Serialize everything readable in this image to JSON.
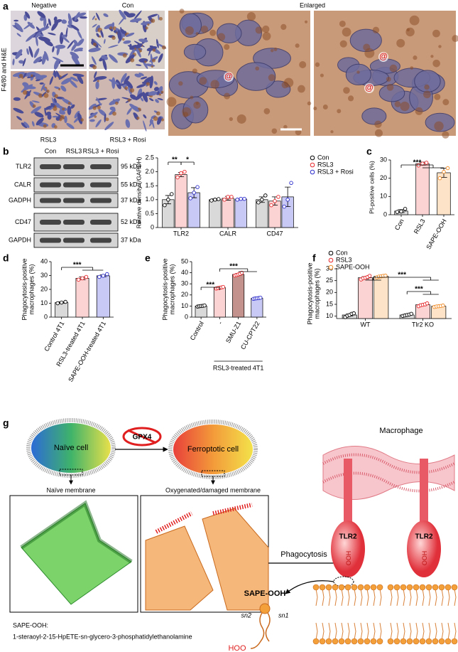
{
  "panel_labels": [
    "a",
    "b",
    "c",
    "d",
    "e",
    "f",
    "g"
  ],
  "panel_a": {
    "ylabel": "F4/80 and H&E",
    "headers": [
      "Negative",
      "Con",
      "Enlarged"
    ],
    "footers": [
      "RSL3",
      "RSL3 + Rosi"
    ],
    "markers": [
      "@",
      "@",
      "@"
    ]
  },
  "blot": {
    "lanes": [
      "Con",
      "RSL3",
      "RSL3 + Rosi"
    ],
    "rows": [
      {
        "name": "TLR2",
        "size": "95 kDa"
      },
      {
        "name": "CALR",
        "size": "55 kDa"
      },
      {
        "name": "GADPH",
        "size": "37 kDa"
      },
      {
        "name": "CD47",
        "size": "52 kDa"
      },
      {
        "name": "GAPDH",
        "size": "37 kDa"
      }
    ]
  },
  "chart_data": [
    {
      "type": "bar",
      "ylabel": "Relative density (/GAPDH)",
      "categories": [
        "TLR2",
        "CALR",
        "CD47"
      ],
      "series": [
        {
          "name": "Con",
          "color": "#d9d9d9",
          "edge_color": "#000000",
          "values": [
            1,
            1,
            1
          ],
          "errors": [
            0.15,
            0.03,
            0.1
          ],
          "points": [
            [
              0.8,
              1.0,
              1.2
            ],
            [
              0.97,
              1.0,
              1.02
            ],
            [
              0.9,
              1.0,
              1.15
            ]
          ]
        },
        {
          "name": "RSL3",
          "color": "#fbd3d3",
          "edge_color": "#e8262a",
          "values": [
            1.9,
            1.05,
            0.95
          ],
          "errors": [
            0.08,
            0.07,
            0.15
          ],
          "points": [
            [
              1.8,
              1.95,
              2.0
            ],
            [
              1.0,
              1.1,
              1.1
            ],
            [
              0.8,
              0.95,
              1.1
            ]
          ]
        },
        {
          "name": "RSL3 + Rosi",
          "color": "#c9c9f5",
          "edge_color": "#2b2bcc",
          "values": [
            1.25,
            1.02,
            1.1
          ],
          "errors": [
            0.18,
            0.02,
            0.35
          ],
          "points": [
            [
              1.05,
              1.25,
              1.45
            ],
            [
              1.0,
              1.03,
              1.03
            ],
            [
              0.75,
              1.0,
              1.6
            ]
          ]
        }
      ],
      "ylim": [
        0,
        2.5
      ],
      "yticks": [
        0,
        0.5,
        {
          "value": 1,
          "label": "1.0"
        },
        1.5,
        {
          "value": 2,
          "label": "2.0"
        },
        2.5
      ],
      "annotations": [
        "**",
        "*"
      ]
    },
    {
      "type": "bar",
      "ylabel": "PI-positive cells (%)",
      "categories": [
        "Con",
        "RSL3",
        "SAPE-OOH"
      ],
      "values": [
        2,
        28,
        23
      ],
      "errors": [
        0.8,
        0.8,
        2.5
      ],
      "points": [
        [
          1.5,
          1.8,
          3.2
        ],
        [
          27,
          28,
          28.5
        ],
        [
          20,
          23.5,
          25.5
        ]
      ],
      "colors": [
        "#d9d9d9",
        "#fbd3d3",
        "#fde3c7"
      ],
      "edge_colors": [
        "#000000",
        "#e8262a",
        "#f08a24"
      ],
      "ylim": [
        0,
        30
      ],
      "yticks": [
        0,
        10,
        20,
        30
      ],
      "annotations": [
        "***"
      ]
    },
    {
      "type": "bar",
      "ylabel": [
        "Phagocytosis-positive",
        "macrophages (%)"
      ],
      "categories": [
        "Control 4T1",
        "RSL3-treated 4T1",
        "SAPE-OOH-treated 4T1"
      ],
      "values": [
        10.5,
        28,
        29.8
      ],
      "errors": [
        0.5,
        1,
        0.7
      ],
      "points": [
        [
          10,
          10.5,
          11
        ],
        [
          27,
          28,
          29
        ],
        [
          29,
          29.8,
          31
        ]
      ],
      "colors": [
        "#d9d9d9",
        "#fbd3d3",
        "#c9c9f5"
      ],
      "edge_colors": [
        "#000000",
        "#e8262a",
        "#2b2bcc"
      ],
      "ylim": [
        0,
        40
      ],
      "yticks": [
        0,
        10,
        20,
        30,
        40
      ],
      "annotations": [
        "***"
      ]
    },
    {
      "type": "bar",
      "ylabel": [
        "Phagocytosis-positive",
        "macrophages (%)"
      ],
      "categories": [
        "Control",
        "-",
        "SMU-Z1",
        "CU-CPT22"
      ],
      "values": [
        10,
        26.5,
        38.5,
        17
      ],
      "errors": [
        0.6,
        0.8,
        1,
        0.5
      ],
      "points": [
        [
          9.5,
          9.8,
          10,
          10.2,
          10.5
        ],
        [
          25.8,
          26.2,
          26.5,
          26.8,
          27.2
        ],
        [
          37.5,
          38,
          38.5,
          39,
          40
        ],
        [
          16.5,
          16.8,
          17,
          17.2,
          17.5
        ]
      ],
      "colors": [
        "#d9d9d9",
        "#fbd3d3",
        "#c4928c",
        "#c9c9f5"
      ],
      "edge_colors": [
        "#000000",
        "#e8262a",
        "#e8262a",
        "#2b2bcc"
      ],
      "group_label": "RSL3-treated 4T1",
      "ylim": [
        0,
        50
      ],
      "yticks": [
        0,
        10,
        20,
        30,
        40,
        50
      ],
      "annotations": [
        "***",
        "***"
      ]
    },
    {
      "type": "bar",
      "ylabel": [
        "Phagocytosis-positive",
        "macrophages (%)"
      ],
      "categories": [
        "WT",
        "Tlr2 KO"
      ],
      "series": [
        {
          "name": "Con",
          "color": "#d9d9d9",
          "edge_color": "#000000",
          "values": [
            10.5,
            10.5
          ],
          "errors": [
            0.4,
            0.3
          ],
          "points": [
            [
              9.6,
              10.2,
              10.5,
              11,
              11.2
            ],
            [
              10.1,
              10.3,
              10.5,
              10.7,
              11
            ]
          ]
        },
        {
          "name": "RSL3",
          "color": "#fbd3d3",
          "edge_color": "#e8262a",
          "values": [
            26.2,
            14.8
          ],
          "errors": [
            0.5,
            0.4
          ],
          "points": [
            [
              25.5,
              26,
              26.2,
              26.5,
              27
            ],
            [
              14.2,
              14.6,
              14.8,
              15,
              15.4
            ]
          ]
        },
        {
          "name": "SAPE-OOH",
          "color": "#fde3c7",
          "edge_color": "#f08a24",
          "values": [
            26.8,
            14.2
          ],
          "errors": [
            0.3,
            0.3
          ],
          "points": [
            [
              26.4,
              26.7,
              26.8,
              27,
              27.1
            ],
            [
              13.9,
              14.1,
              14.2,
              14.3,
              14.5
            ]
          ]
        }
      ],
      "ylim": [
        9,
        30
      ],
      "yticks": [
        10,
        15,
        20,
        25,
        30
      ],
      "annotations": [
        "***",
        "***"
      ]
    }
  ],
  "diagram": {
    "naive_cell": "Naïve cell",
    "enzyme": "GPX4",
    "ferroptotic_cell": "Ferroptotic cell",
    "naive_membrane": "Naïve membrane",
    "damaged_membrane": "Oxygenated/damaged membrane",
    "process": "Phagocytosis",
    "macrophage": "Macrophage",
    "receptors": [
      "TLR2",
      "TLR2"
    ],
    "receptor_groups": [
      "HOO",
      "HOO"
    ],
    "lipid": "SAPE-OOH",
    "chains": [
      "sn2",
      "sn1"
    ],
    "lipid_group": "HOO",
    "legend_term": "SAPE-OOH:",
    "legend_definition": "1-steraoyl-2-15-HpETE-sn-glycero-3-phosphatidylethanolamine"
  }
}
